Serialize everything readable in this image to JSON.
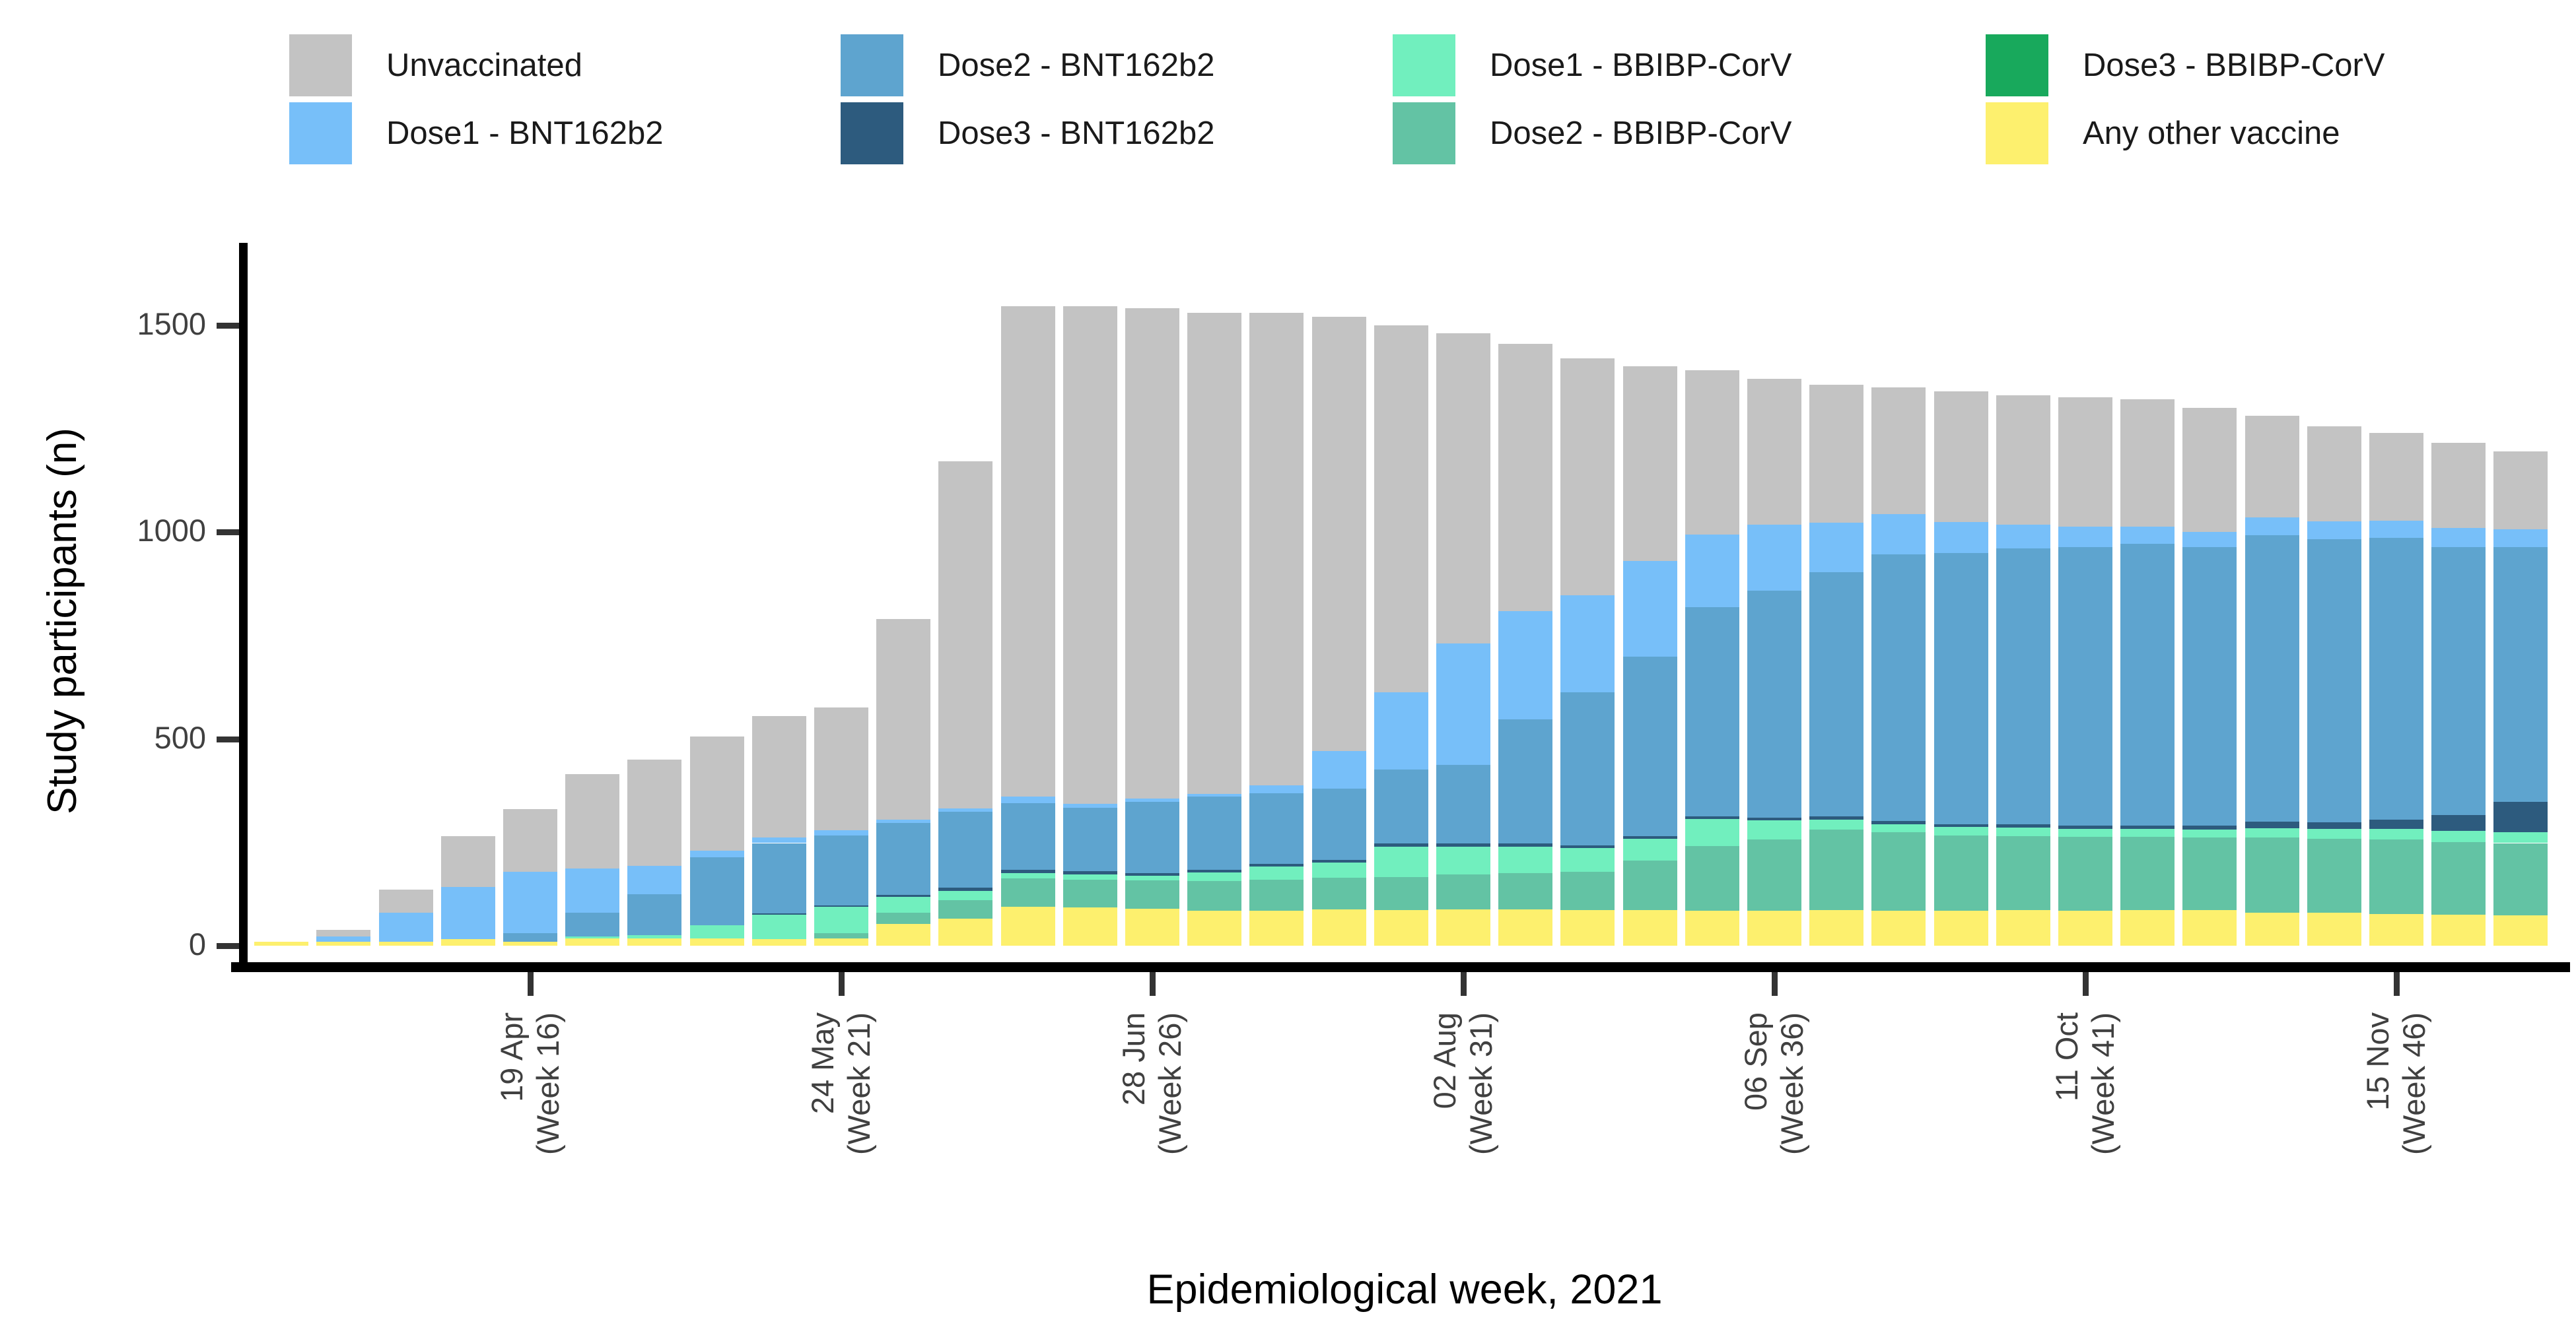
{
  "chart_data": {
    "type": "bar",
    "stacked": true,
    "title": "",
    "xlabel": "Epidemiological week, 2021",
    "ylabel": "Study participants (n)",
    "ylim": [
      0,
      1600
    ],
    "yticks": [
      0,
      500,
      1000,
      1500
    ],
    "ytick_labels": [
      "0",
      "500",
      "1000",
      "1500"
    ],
    "grid": "off",
    "legend_position": "top",
    "weeks": [
      12,
      13,
      14,
      15,
      16,
      17,
      18,
      19,
      20,
      21,
      22,
      23,
      24,
      25,
      26,
      27,
      28,
      29,
      30,
      31,
      32,
      33,
      34,
      35,
      36,
      37,
      38,
      39,
      40,
      41,
      42,
      43,
      44,
      45,
      46,
      47,
      48
    ],
    "xticks": [
      {
        "week": 16,
        "line1": "19 Apr",
        "line2": "(Week 16)"
      },
      {
        "week": 21,
        "line1": "24 May",
        "line2": "(Week 21)"
      },
      {
        "week": 26,
        "line1": "28 Jun",
        "line2": "(Week 26)"
      },
      {
        "week": 31,
        "line1": "02 Aug",
        "line2": "(Week 31)"
      },
      {
        "week": 36,
        "line1": "06 Sep",
        "line2": "(Week 36)"
      },
      {
        "week": 41,
        "line1": "11 Oct",
        "line2": "(Week 41)"
      },
      {
        "week": 46,
        "line1": "15 Nov",
        "line2": "(Week 46)"
      }
    ],
    "legend_order": [
      "Unvaccinated",
      "Dose1 - BNT162b2",
      "Dose2 - BNT162b2",
      "Dose3 - BNT162b2",
      "Dose1 - BBIBP-CorV",
      "Dose2 - BBIBP-CorV",
      "Dose3 - BBIBP-CorV",
      "Any other vaccine"
    ],
    "series": [
      {
        "name": "Any other vaccine",
        "color": "#FDF06E",
        "values": [
          10,
          10,
          10,
          16,
          10,
          17,
          18,
          17,
          16,
          18,
          52,
          65,
          94,
          92,
          90,
          84,
          85,
          87,
          86,
          88,
          88,
          86,
          86,
          85,
          85,
          86,
          84,
          84,
          86,
          85,
          86,
          86,
          79,
          79,
          76,
          75,
          73
        ]
      },
      {
        "name": "Dose3 - BBIBP-CorV",
        "color": "#18A95C",
        "values": [
          0,
          0,
          0,
          0,
          0,
          0,
          0,
          0,
          0,
          0,
          0,
          0,
          0,
          0,
          0,
          0,
          0,
          0,
          0,
          0,
          0,
          0,
          0,
          0,
          0,
          0,
          0,
          0,
          0,
          0,
          0,
          0,
          0,
          0,
          0,
          0,
          0
        ]
      },
      {
        "name": "Dose2 - BBIBP-CorV",
        "color": "#63C3A4",
        "values": [
          0,
          0,
          0,
          0,
          0,
          0,
          0,
          0,
          0,
          13,
          28,
          45,
          68,
          67,
          68,
          72,
          74,
          77,
          80,
          84,
          88,
          92,
          120,
          156,
          172,
          194,
          190,
          182,
          178,
          178,
          177,
          175,
          182,
          179,
          180,
          176,
          175
        ]
      },
      {
        "name": "Dose1 - BBIBP-CorV",
        "color": "#71EFBE",
        "values": [
          0,
          0,
          0,
          0,
          0,
          6,
          7,
          33,
          60,
          63,
          38,
          23,
          14,
          13,
          11,
          21,
          32,
          37,
          74,
          68,
          64,
          58,
          52,
          65,
          46,
          25,
          20,
          21,
          21,
          20,
          19,
          19,
          23,
          24,
          26,
          26,
          26
        ]
      },
      {
        "name": "Dose3 - BNT162b2",
        "color": "#2D5B7E",
        "values": [
          0,
          0,
          0,
          0,
          0,
          0,
          0,
          0,
          2,
          3,
          5,
          8,
          7,
          8,
          7,
          7,
          7,
          7,
          7,
          7,
          7,
          7,
          7,
          7,
          7,
          7,
          7,
          7,
          8,
          8,
          8,
          10,
          16,
          17,
          22,
          39,
          73
        ]
      },
      {
        "name": "Dose2 - BNT162b2",
        "color": "#5EA4CF",
        "values": [
          0,
          0,
          0,
          0,
          20,
          56,
          100,
          164,
          170,
          170,
          174,
          183,
          161,
          153,
          171,
          176,
          171,
          171,
          179,
          190,
          300,
          370,
          434,
          505,
          548,
          590,
          645,
          655,
          667,
          672,
          681,
          673,
          692,
          684,
          681,
          647,
          616
        ]
      },
      {
        "name": "Dose1 - BNT162b2",
        "color": "#77BFF9",
        "values": [
          0,
          12,
          70,
          126,
          148,
          107,
          68,
          15,
          13,
          12,
          7,
          7,
          17,
          10,
          8,
          7,
          19,
          91,
          187,
          293,
          262,
          234,
          231,
          175,
          160,
          120,
          97,
          75,
          58,
          50,
          42,
          37,
          43,
          42,
          42,
          47,
          44
        ]
      },
      {
        "name": "Unvaccinated",
        "color": "#C3C3C3",
        "values": [
          0,
          16,
          55,
          122,
          152,
          229,
          257,
          276,
          294,
          296,
          486,
          839,
          1184,
          1202,
          1185,
          1163,
          1142,
          1050,
          887,
          750,
          646,
          573,
          470,
          397,
          352,
          333,
          307,
          316,
          312,
          312,
          307,
          300,
          245,
          230,
          213,
          205,
          188
        ]
      }
    ]
  }
}
